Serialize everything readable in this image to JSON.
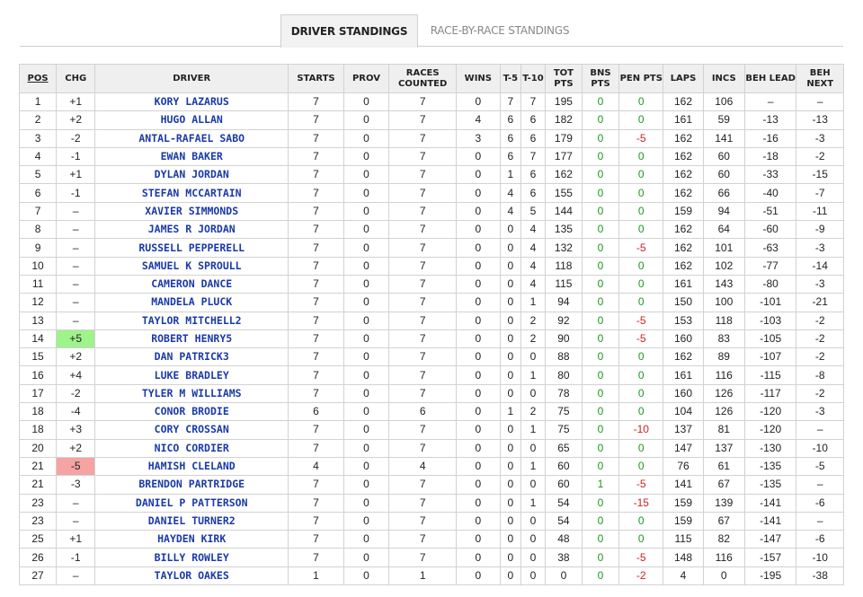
{
  "tabs": [
    {
      "label": "DRIVER STANDINGS",
      "active": true
    },
    {
      "label": "RACE-BY-RACE STANDINGS",
      "active": false
    }
  ],
  "columns": [
    "POS",
    "CHG",
    "DRIVER",
    "STARTS",
    "PROV",
    "RACES COUNTED",
    "WINS",
    "T-5",
    "T-10",
    "TOT PTS",
    "BNS PTS",
    "PEN PTS",
    "LAPS",
    "INCS",
    "BEH LEAD",
    "BEH NEXT"
  ],
  "colors": {
    "driver_link": "#1a3aa8",
    "positive": "#1a9a1a",
    "negative": "#d42020",
    "chg_up_highlight": "#9ef38a",
    "chg_down_highlight": "#f6a3a3"
  },
  "rows": [
    [
      "1",
      "+1",
      "KORY LAZARUS",
      "7",
      "0",
      "7",
      "0",
      "7",
      "7",
      "195",
      "0",
      "0",
      "162",
      "106",
      "–",
      "–"
    ],
    [
      "2",
      "+2",
      "HUGO ALLAN",
      "7",
      "0",
      "7",
      "4",
      "6",
      "6",
      "182",
      "0",
      "0",
      "161",
      "59",
      "-13",
      "-13"
    ],
    [
      "3",
      "-2",
      "ANTAL-RAFAEL SABO",
      "7",
      "0",
      "7",
      "3",
      "6",
      "6",
      "179",
      "0",
      "-5",
      "162",
      "141",
      "-16",
      "-3"
    ],
    [
      "4",
      "-1",
      "EWAN BAKER",
      "7",
      "0",
      "7",
      "0",
      "6",
      "7",
      "177",
      "0",
      "0",
      "162",
      "60",
      "-18",
      "-2"
    ],
    [
      "5",
      "+1",
      "DYLAN JORDAN",
      "7",
      "0",
      "7",
      "0",
      "1",
      "6",
      "162",
      "0",
      "0",
      "162",
      "60",
      "-33",
      "-15"
    ],
    [
      "6",
      "-1",
      "STEFAN MCCARTAIN",
      "7",
      "0",
      "7",
      "0",
      "4",
      "6",
      "155",
      "0",
      "0",
      "162",
      "66",
      "-40",
      "-7"
    ],
    [
      "7",
      "–",
      "XAVIER SIMMONDS",
      "7",
      "0",
      "7",
      "0",
      "4",
      "5",
      "144",
      "0",
      "0",
      "159",
      "94",
      "-51",
      "-11"
    ],
    [
      "8",
      "–",
      "JAMES R JORDAN",
      "7",
      "0",
      "7",
      "0",
      "0",
      "4",
      "135",
      "0",
      "0",
      "162",
      "64",
      "-60",
      "-9"
    ],
    [
      "9",
      "–",
      "RUSSELL PEPPERELL",
      "7",
      "0",
      "7",
      "0",
      "0",
      "4",
      "132",
      "0",
      "-5",
      "162",
      "101",
      "-63",
      "-3"
    ],
    [
      "10",
      "–",
      "SAMUEL K SPROULL",
      "7",
      "0",
      "7",
      "0",
      "0",
      "4",
      "118",
      "0",
      "0",
      "162",
      "102",
      "-77",
      "-14"
    ],
    [
      "11",
      "–",
      "CAMERON DANCE",
      "7",
      "0",
      "7",
      "0",
      "0",
      "4",
      "115",
      "0",
      "0",
      "161",
      "143",
      "-80",
      "-3"
    ],
    [
      "12",
      "–",
      "MANDELA PLUCK",
      "7",
      "0",
      "7",
      "0",
      "0",
      "1",
      "94",
      "0",
      "0",
      "150",
      "100",
      "-101",
      "-21"
    ],
    [
      "13",
      "–",
      "TAYLOR MITCHELL2",
      "7",
      "0",
      "7",
      "0",
      "0",
      "2",
      "92",
      "0",
      "-5",
      "153",
      "118",
      "-103",
      "-2"
    ],
    [
      "14",
      "+5",
      "ROBERT HENRY5",
      "7",
      "0",
      "7",
      "0",
      "0",
      "2",
      "90",
      "0",
      "-5",
      "160",
      "83",
      "-105",
      "-2"
    ],
    [
      "15",
      "+2",
      "DAN PATRICK3",
      "7",
      "0",
      "7",
      "0",
      "0",
      "0",
      "88",
      "0",
      "0",
      "162",
      "89",
      "-107",
      "-2"
    ],
    [
      "16",
      "+4",
      "LUKE BRADLEY",
      "7",
      "0",
      "7",
      "0",
      "0",
      "1",
      "80",
      "0",
      "0",
      "161",
      "116",
      "-115",
      "-8"
    ],
    [
      "17",
      "-2",
      "TYLER M WILLIAMS",
      "7",
      "0",
      "7",
      "0",
      "0",
      "0",
      "78",
      "0",
      "0",
      "160",
      "126",
      "-117",
      "-2"
    ],
    [
      "18",
      "-4",
      "CONOR BRODIE",
      "6",
      "0",
      "6",
      "0",
      "1",
      "2",
      "75",
      "0",
      "0",
      "104",
      "126",
      "-120",
      "-3"
    ],
    [
      "18",
      "+3",
      "CORY CROSSAN",
      "7",
      "0",
      "7",
      "0",
      "0",
      "1",
      "75",
      "0",
      "-10",
      "137",
      "81",
      "-120",
      "–"
    ],
    [
      "20",
      "+2",
      "NICO CORDIER",
      "7",
      "0",
      "7",
      "0",
      "0",
      "0",
      "65",
      "0",
      "0",
      "147",
      "137",
      "-130",
      "-10"
    ],
    [
      "21",
      "-5",
      "HAMISH CLELAND",
      "4",
      "0",
      "4",
      "0",
      "0",
      "1",
      "60",
      "0",
      "0",
      "76",
      "61",
      "-135",
      "-5"
    ],
    [
      "21",
      "-3",
      "BRENDON PARTRIDGE",
      "7",
      "0",
      "7",
      "0",
      "0",
      "0",
      "60",
      "1",
      "-5",
      "141",
      "67",
      "-135",
      "–"
    ],
    [
      "23",
      "–",
      "DANIEL P PATTERSON",
      "7",
      "0",
      "7",
      "0",
      "0",
      "1",
      "54",
      "0",
      "-15",
      "159",
      "139",
      "-141",
      "-6"
    ],
    [
      "23",
      "–",
      "DANIEL TURNER2",
      "7",
      "0",
      "7",
      "0",
      "0",
      "0",
      "54",
      "0",
      "0",
      "159",
      "67",
      "-141",
      "–"
    ],
    [
      "25",
      "+1",
      "HAYDEN KIRK",
      "7",
      "0",
      "7",
      "0",
      "0",
      "0",
      "48",
      "0",
      "0",
      "115",
      "82",
      "-147",
      "-6"
    ],
    [
      "26",
      "-1",
      "BILLY ROWLEY",
      "7",
      "0",
      "7",
      "0",
      "0",
      "0",
      "38",
      "0",
      "-5",
      "148",
      "116",
      "-157",
      "-10"
    ],
    [
      "27",
      "–",
      "TAYLOR OAKES",
      "1",
      "0",
      "1",
      "0",
      "0",
      "0",
      "0",
      "0",
      "-2",
      "4",
      "0",
      "-195",
      "-38"
    ]
  ],
  "highlights": {
    "up_row_index": 13,
    "down_row_index": 20
  }
}
